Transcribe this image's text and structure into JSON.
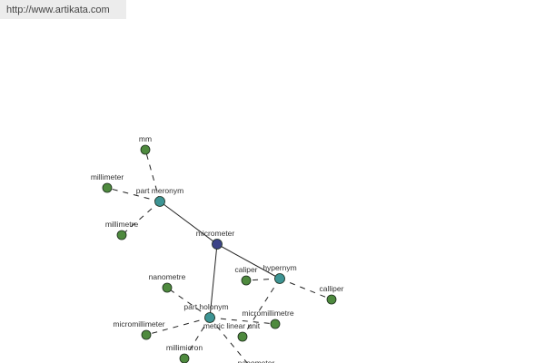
{
  "header": {
    "site_url": "http://www.artikata.com"
  },
  "colors": {
    "term": "#4e8a3e",
    "relation": "#3d9494",
    "root": "#3c4488",
    "edge": "#222222"
  },
  "graph": {
    "nodes": [
      {
        "id": "micrometer",
        "label": "micrometer",
        "type": "root"
      },
      {
        "id": "part_meronym",
        "label": "part meronym",
        "type": "relation"
      },
      {
        "id": "hypernym",
        "label": "hypernym",
        "type": "relation"
      },
      {
        "id": "part_holonym",
        "label": "part holonym",
        "type": "relation"
      },
      {
        "id": "mm",
        "label": "mm",
        "type": "term"
      },
      {
        "id": "millimeter",
        "label": "millimeter",
        "type": "term"
      },
      {
        "id": "millimetre",
        "label": "millimetre",
        "type": "term"
      },
      {
        "id": "caliper",
        "label": "caliper",
        "type": "term"
      },
      {
        "id": "calliper",
        "label": "calliper",
        "type": "term"
      },
      {
        "id": "metric_linear_unit",
        "label": "metric linear unit",
        "type": "term"
      },
      {
        "id": "nanometre",
        "label": "nanometre",
        "type": "term"
      },
      {
        "id": "micromillimeter",
        "label": "micromillimeter",
        "type": "term"
      },
      {
        "id": "micromillimetre",
        "label": "micromillimetre",
        "type": "term"
      },
      {
        "id": "millimicron",
        "label": "millimicron",
        "type": "term"
      },
      {
        "id": "nanometer",
        "label": "nanometer",
        "type": "term"
      }
    ],
    "edges": [
      {
        "from": "micrometer",
        "to": "part_meronym",
        "style": "solid"
      },
      {
        "from": "micrometer",
        "to": "hypernym",
        "style": "solid"
      },
      {
        "from": "micrometer",
        "to": "part_holonym",
        "style": "solid"
      },
      {
        "from": "part_meronym",
        "to": "mm",
        "style": "dashed"
      },
      {
        "from": "part_meronym",
        "to": "millimeter",
        "style": "dashed"
      },
      {
        "from": "part_meronym",
        "to": "millimetre",
        "style": "dashed"
      },
      {
        "from": "hypernym",
        "to": "caliper",
        "style": "dashed"
      },
      {
        "from": "hypernym",
        "to": "calliper",
        "style": "dashed"
      },
      {
        "from": "hypernym",
        "to": "metric_linear_unit",
        "style": "dashed"
      },
      {
        "from": "part_holonym",
        "to": "nanometre",
        "style": "dashed"
      },
      {
        "from": "part_holonym",
        "to": "micromillimeter",
        "style": "dashed"
      },
      {
        "from": "part_holonym",
        "to": "micromillimetre",
        "style": "dashed"
      },
      {
        "from": "part_holonym",
        "to": "millimicron",
        "style": "dashed"
      },
      {
        "from": "part_holonym",
        "to": "nanometer",
        "style": "dashed"
      }
    ]
  }
}
